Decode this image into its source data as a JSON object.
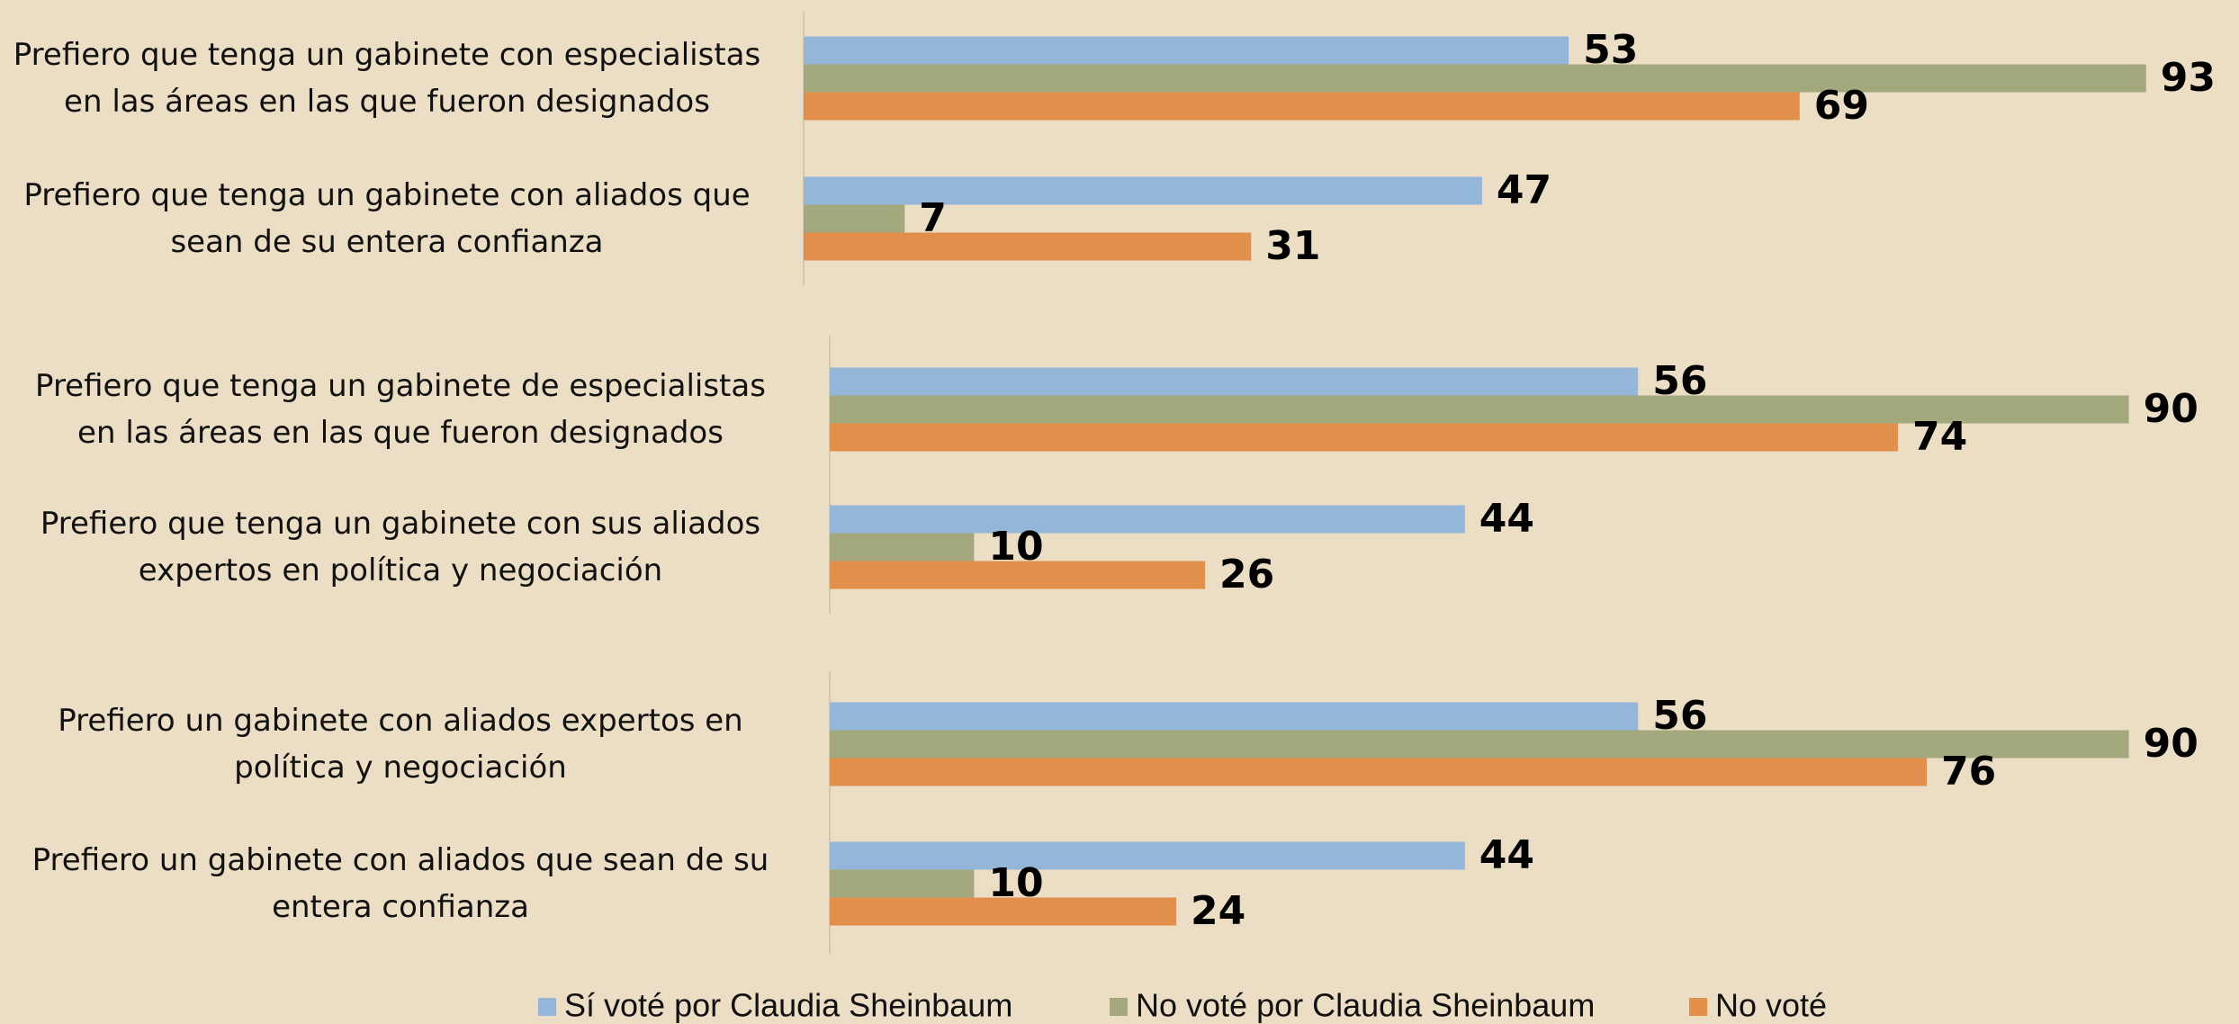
{
  "chart_data": [
    {
      "type": "bar",
      "orientation": "horizontal",
      "categories": [
        "Prefiero que tenga un gabinete con especialistas\nen las áreas en las que fueron designados",
        "Prefiero que tenga un gabinete con aliados que\nsean de su entera confianza"
      ],
      "series": [
        {
          "name": "Sí voté por Claudia Sheinbaum",
          "color": "#94b6d8",
          "values": [
            53,
            47
          ]
        },
        {
          "name": "No voté por Claudia Sheinbaum",
          "color": "#a3a87d",
          "values": [
            93,
            7
          ]
        },
        {
          "name": "No voté",
          "color": "#e28f4c",
          "values": [
            69,
            31
          ]
        }
      ],
      "xlim": [
        0,
        100
      ]
    },
    {
      "type": "bar",
      "orientation": "horizontal",
      "categories": [
        "Prefiero que tenga un gabinete de especialistas\nen las áreas en las que fueron designados",
        "Prefiero que tenga un gabinete con sus aliados\nexpertos en política y negociación"
      ],
      "series": [
        {
          "color": "#94b6d8",
          "values": [
            56,
            44
          ]
        },
        {
          "color": "#a3a87d",
          "values": [
            90,
            10
          ]
        },
        {
          "color": "#e28f4c",
          "values": [
            74,
            26
          ]
        }
      ],
      "xlim": [
        0,
        100
      ]
    },
    {
      "type": "bar",
      "orientation": "horizontal",
      "categories": [
        "Prefiero un gabinete con aliados expertos en\npolítica y negociación",
        "Prefiero un gabinete con aliados que sean de su\nentera confianza"
      ],
      "series": [
        {
          "color": "#94b6d8",
          "values": [
            56,
            44
          ]
        },
        {
          "color": "#a3a87d",
          "values": [
            90,
            10
          ]
        },
        {
          "color": "#e28f4c",
          "values": [
            76,
            24
          ]
        }
      ],
      "xlim": [
        0,
        100
      ]
    }
  ]
}
